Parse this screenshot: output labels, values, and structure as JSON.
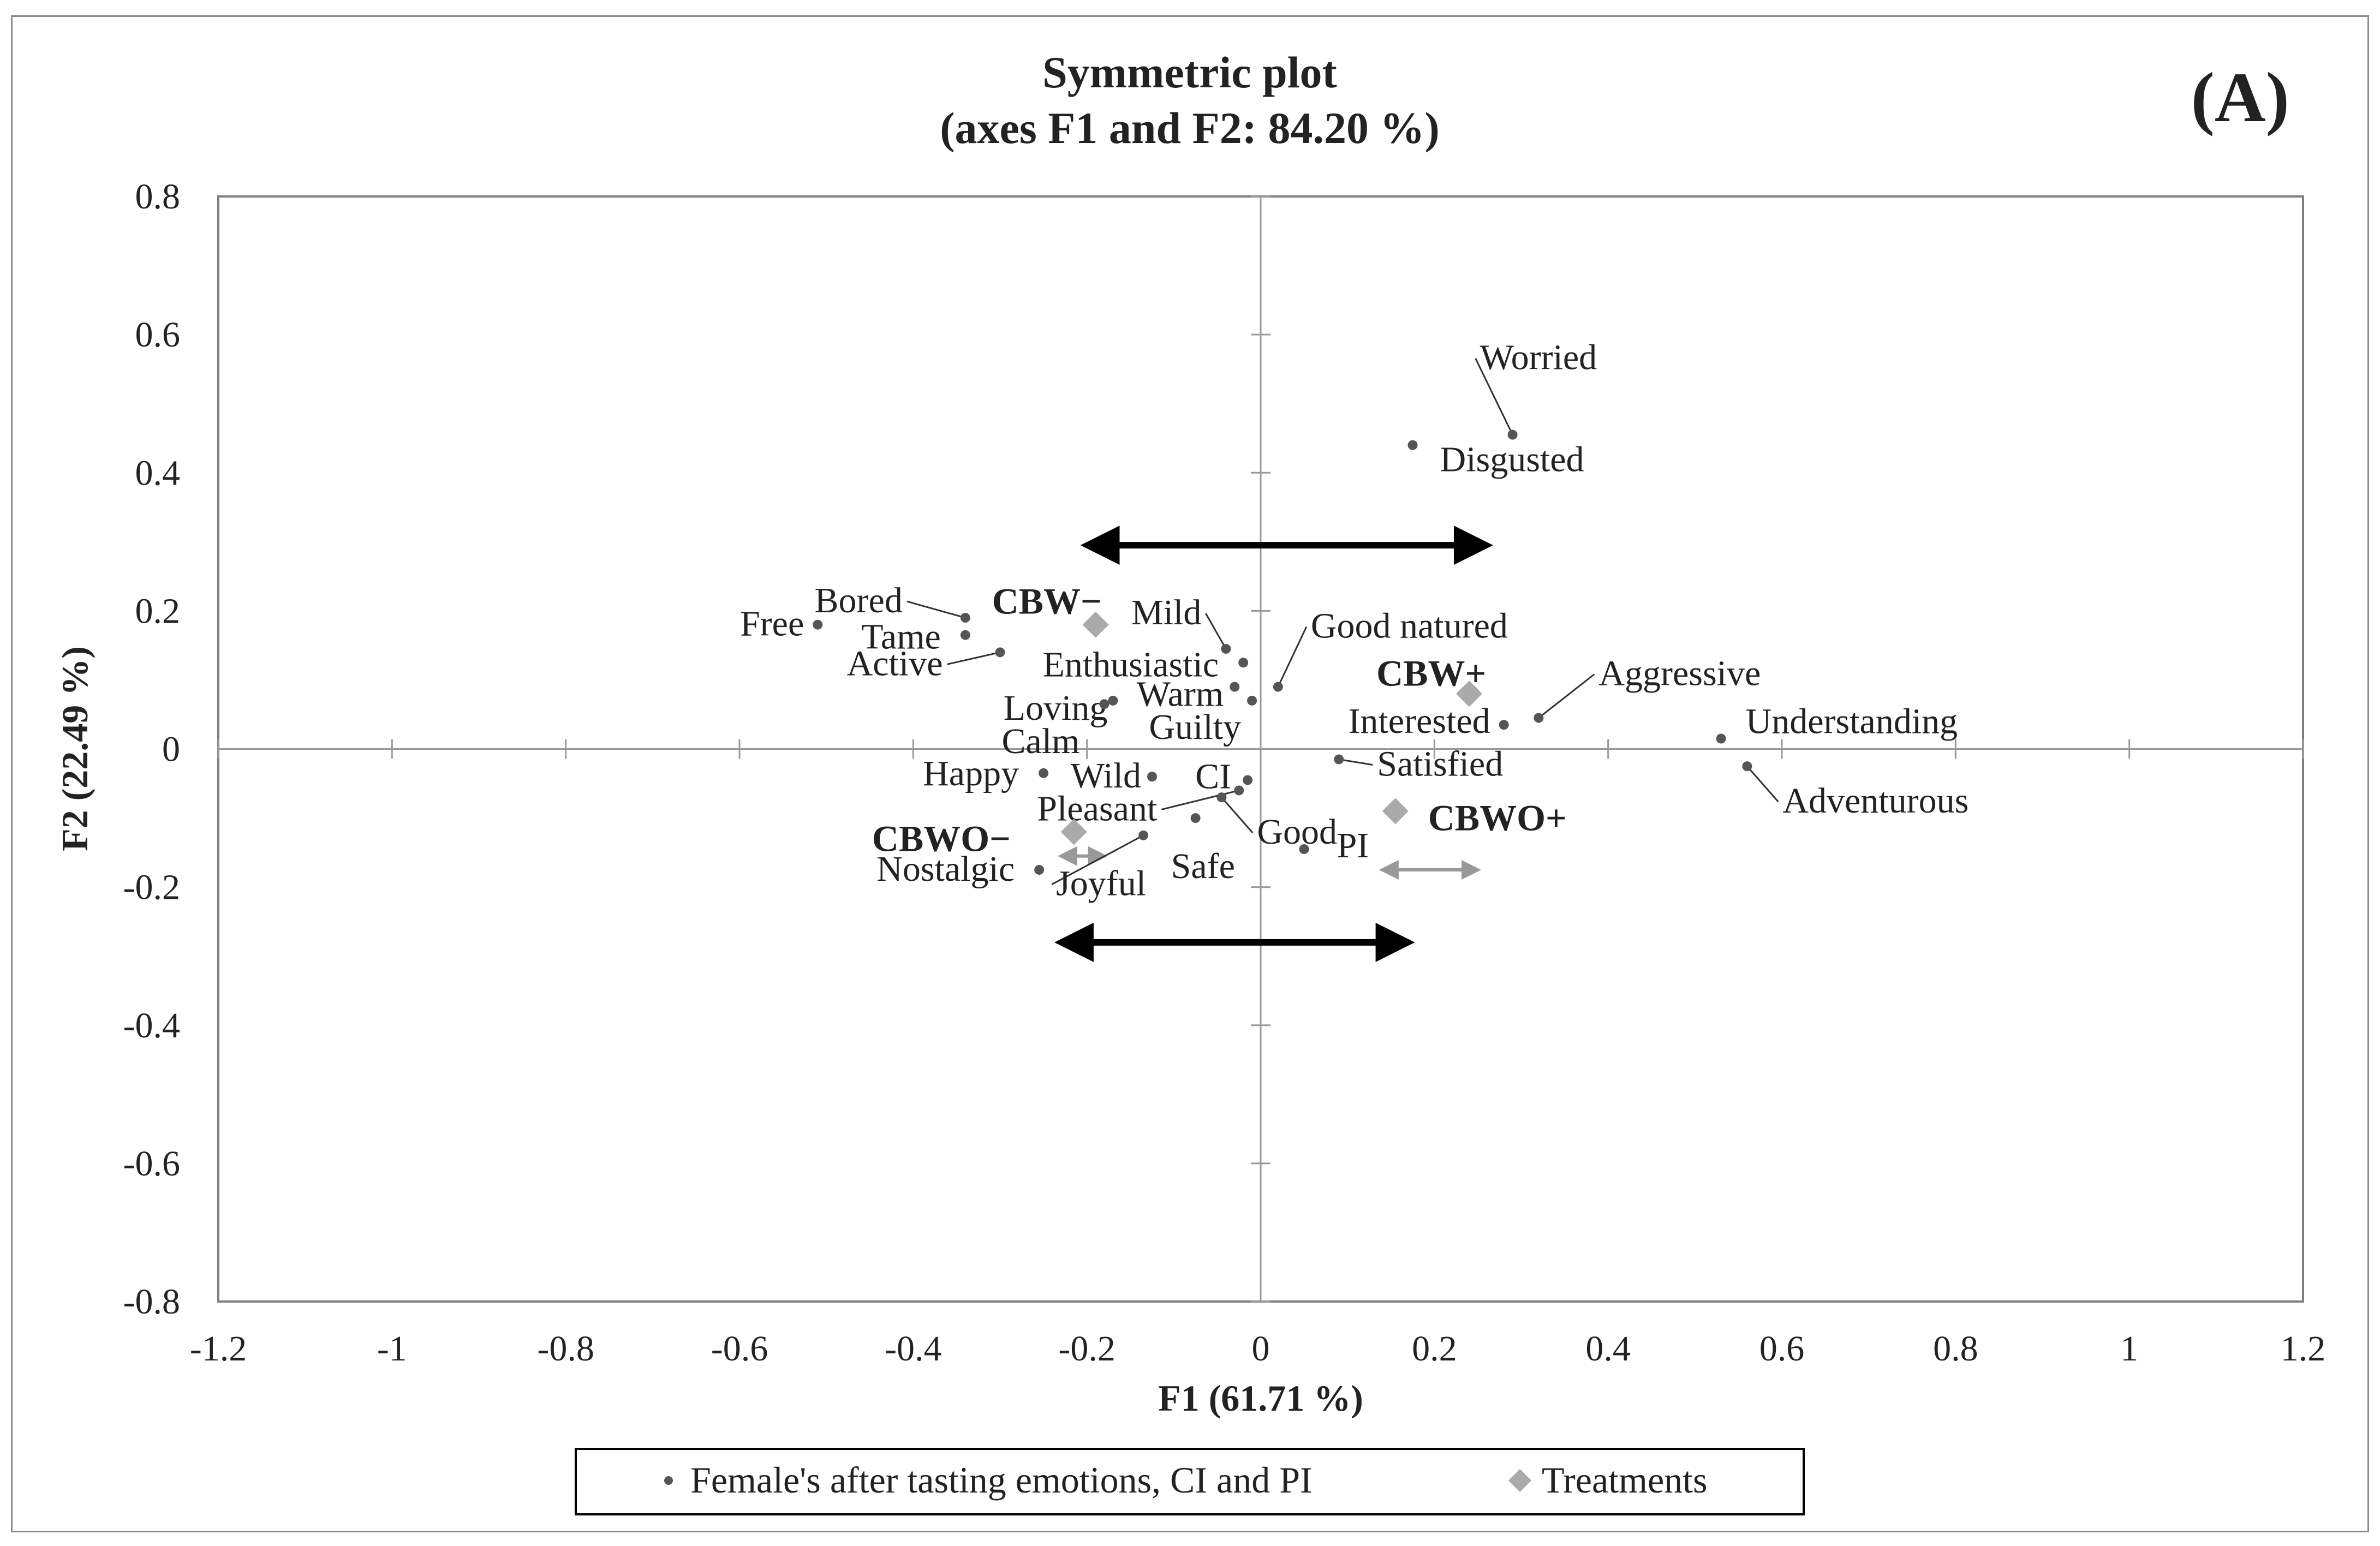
{
  "chart_data": {
    "type": "scatter",
    "title": "Symmetric plot",
    "subtitle": "(axes F1 and F2: 84.20 %)",
    "panel_label": "(A)",
    "xlabel": "F1 (61.71 %)",
    "ylabel": "F2 (22.49 %)",
    "xlim": [
      -1.2,
      1.2
    ],
    "ylim": [
      -0.8,
      0.8
    ],
    "x_ticks": [
      -1.2,
      -1,
      -0.8,
      -0.6,
      -0.4,
      -0.2,
      0,
      0.2,
      0.4,
      0.6,
      0.8,
      1,
      1.2
    ],
    "y_ticks": [
      -0.8,
      -0.6,
      -0.4,
      -0.2,
      0,
      0.2,
      0.4,
      0.6,
      0.8
    ],
    "x_tick_labels": [
      "-1.2",
      "-1",
      "-0.8",
      "-0.6",
      "-0.4",
      "-0.2",
      "0",
      "0.2",
      "0.4",
      "0.6",
      "0.8",
      "1",
      "1.2"
    ],
    "y_tick_labels": [
      "-0.8",
      "-0.6",
      "-0.4",
      "-0.2",
      "0",
      "0.2",
      "0.4",
      "0.6",
      "0.8"
    ],
    "legend_position": "bottom",
    "series": [
      {
        "name": "Female's after tasting emotions, CI and PI",
        "marker": "dot",
        "color": "#555555",
        "points": [
          {
            "label": "Worried",
            "x": 0.29,
            "y": 0.455
          },
          {
            "label": "Disgusted",
            "x": 0.175,
            "y": 0.44
          },
          {
            "label": "Free",
            "x": -0.51,
            "y": 0.18
          },
          {
            "label": "Bored",
            "x": -0.34,
            "y": 0.19
          },
          {
            "label": "Tame",
            "x": -0.34,
            "y": 0.165
          },
          {
            "label": "Active",
            "x": -0.3,
            "y": 0.14
          },
          {
            "label": "Mild",
            "x": -0.04,
            "y": 0.145
          },
          {
            "label": "Enthusiastic",
            "x": -0.02,
            "y": 0.125
          },
          {
            "label": "Good natured",
            "x": 0.02,
            "y": 0.09
          },
          {
            "label": "Warm",
            "x": -0.03,
            "y": 0.09
          },
          {
            "label": "Loving",
            "x": -0.17,
            "y": 0.07
          },
          {
            "label": "Calm",
            "x": -0.18,
            "y": 0.065
          },
          {
            "label": "Guilty",
            "x": -0.01,
            "y": 0.07
          },
          {
            "label": "Aggressive",
            "x": 0.32,
            "y": 0.045
          },
          {
            "label": "Interested",
            "x": 0.28,
            "y": 0.035
          },
          {
            "label": "Understanding",
            "x": 0.53,
            "y": 0.015
          },
          {
            "label": "Adventurous",
            "x": 0.56,
            "y": -0.025
          },
          {
            "label": "Satisfied",
            "x": 0.09,
            "y": -0.015
          },
          {
            "label": "Happy",
            "x": -0.25,
            "y": -0.035
          },
          {
            "label": "Wild",
            "x": -0.125,
            "y": -0.04
          },
          {
            "label": "CI",
            "x": -0.015,
            "y": -0.045
          },
          {
            "label": "Pleasant",
            "x": -0.025,
            "y": -0.06
          },
          {
            "label": "Good",
            "x": -0.045,
            "y": -0.07
          },
          {
            "label": "Safe",
            "x": -0.075,
            "y": -0.1
          },
          {
            "label": "PI",
            "x": 0.05,
            "y": -0.145
          },
          {
            "label": "Nostalgic",
            "x": -0.255,
            "y": -0.175
          },
          {
            "label": "Joyful",
            "x": -0.135,
            "y": -0.125
          }
        ]
      },
      {
        "name": "Treatments",
        "marker": "diamond",
        "color": "#aaaaaa",
        "points": [
          {
            "label": "CBW−",
            "x": -0.19,
            "y": 0.18
          },
          {
            "label": "CBW+",
            "x": 0.24,
            "y": 0.08
          },
          {
            "label": "CBWO+",
            "x": 0.155,
            "y": -0.09
          },
          {
            "label": "CBWO−",
            "x": -0.215,
            "y": -0.12
          }
        ]
      }
    ],
    "annotations": [
      {
        "type": "double-arrow",
        "color": "#000000",
        "x1": -0.2,
        "x2": 0.26,
        "y": 0.295
      },
      {
        "type": "double-arrow",
        "color": "#000000",
        "x1": -0.23,
        "x2": 0.17,
        "y": -0.28
      },
      {
        "type": "double-arrow",
        "color": "#999999",
        "x1": -0.23,
        "x2": -0.18,
        "y": -0.155
      },
      {
        "type": "double-arrow",
        "color": "#999999",
        "x1": 0.14,
        "x2": 0.25,
        "y": -0.175
      }
    ]
  }
}
